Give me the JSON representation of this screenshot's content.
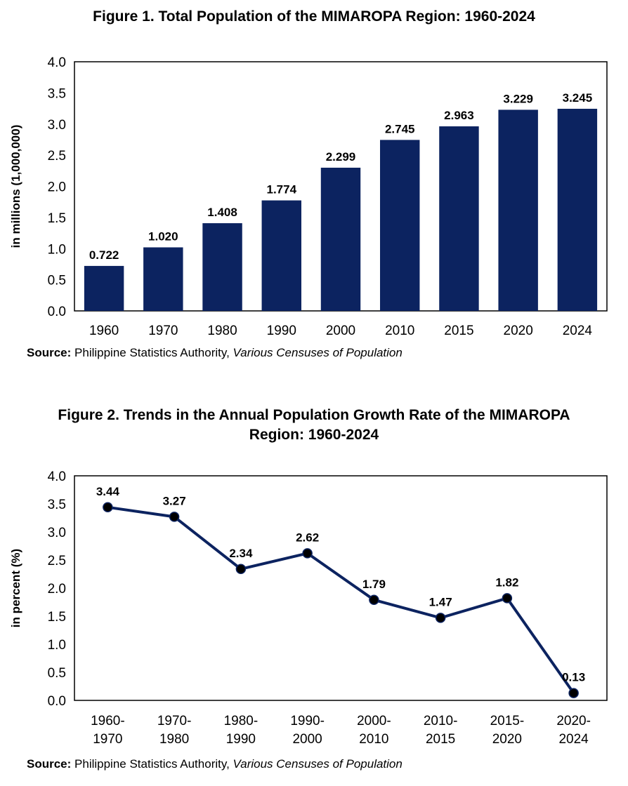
{
  "colors": {
    "bar": "#0c2360",
    "line": "#0c2360",
    "marker": "#000000",
    "frame": "#000000"
  },
  "source": {
    "label": "Source:",
    "text": " Philippine Statistics Authority, ",
    "italic": "Various Censuses of Population"
  },
  "chart_data": [
    {
      "type": "bar",
      "title": "Figure 1. Total Population of the MIMAROPA Region: 1960-2024",
      "ylabel": "in millions (1,000,000)",
      "xlabel": "",
      "ylim": [
        0,
        4
      ],
      "yticks": [
        "0.0",
        "0.5",
        "1.0",
        "1.5",
        "2.0",
        "2.5",
        "3.0",
        "3.5",
        "4.0"
      ],
      "categories": [
        "1960",
        "1970",
        "1980",
        "1990",
        "2000",
        "2010",
        "2015",
        "2020",
        "2024"
      ],
      "values": [
        0.722,
        1.02,
        1.408,
        1.774,
        2.299,
        2.745,
        2.963,
        3.229,
        3.245
      ],
      "labels": [
        "0.722",
        "1.020",
        "1.408",
        "1.774",
        "2.299",
        "2.745",
        "2.963",
        "3.229",
        "3.245"
      ],
      "grid": false,
      "legend": "none"
    },
    {
      "type": "line",
      "title": "Figure 2. Trends in the Annual Population Growth Rate of the MIMAROPA Region: 1960-2024",
      "title_lines": [
        "Figure 2. Trends in the Annual Population Growth Rate of the MIMAROPA",
        "Region: 1960-2024"
      ],
      "ylabel": "in percent (%)",
      "xlabel": "",
      "ylim": [
        0,
        4
      ],
      "yticks": [
        "0.0",
        "0.5",
        "1.0",
        "1.5",
        "2.0",
        "2.5",
        "3.0",
        "3.5",
        "4.0"
      ],
      "categories": [
        [
          "1960-",
          "1970"
        ],
        [
          "1970-",
          "1980"
        ],
        [
          "1980-",
          "1990"
        ],
        [
          "1990-",
          "2000"
        ],
        [
          "2000-",
          "2010"
        ],
        [
          "2010-",
          "2015"
        ],
        [
          "2015-",
          "2020"
        ],
        [
          "2020-",
          "2024"
        ]
      ],
      "values": [
        3.44,
        3.27,
        2.34,
        2.62,
        1.79,
        1.47,
        1.82,
        0.13
      ],
      "labels": [
        "3.44",
        "3.27",
        "2.34",
        "2.62",
        "1.79",
        "1.47",
        "1.82",
        "0.13"
      ],
      "grid": false,
      "legend": "none"
    }
  ]
}
